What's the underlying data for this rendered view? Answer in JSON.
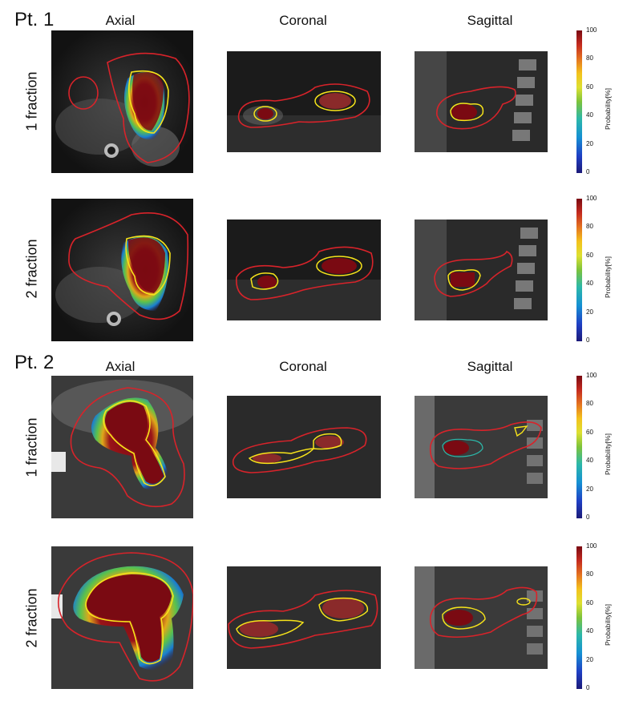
{
  "patients": [
    {
      "label": "Pt. 1",
      "views": [
        "Axial",
        "Coronal",
        "Sagittal"
      ],
      "rows": [
        "1 fraction",
        "2 fraction"
      ]
    },
    {
      "label": "Pt. 2",
      "views": [
        "Axial",
        "Coronal",
        "Sagittal"
      ],
      "rows": [
        "1 fraction",
        "2 fraction"
      ]
    }
  ],
  "colorbar": {
    "title": "Probability[%]",
    "ticks": [
      "0",
      "20",
      "40",
      "60",
      "80",
      "100"
    ],
    "colormap": "jet",
    "range": [
      0,
      100
    ]
  },
  "colors": {
    "outer_contour": "#d8232a",
    "inner_contour": "#f7e41a"
  }
}
